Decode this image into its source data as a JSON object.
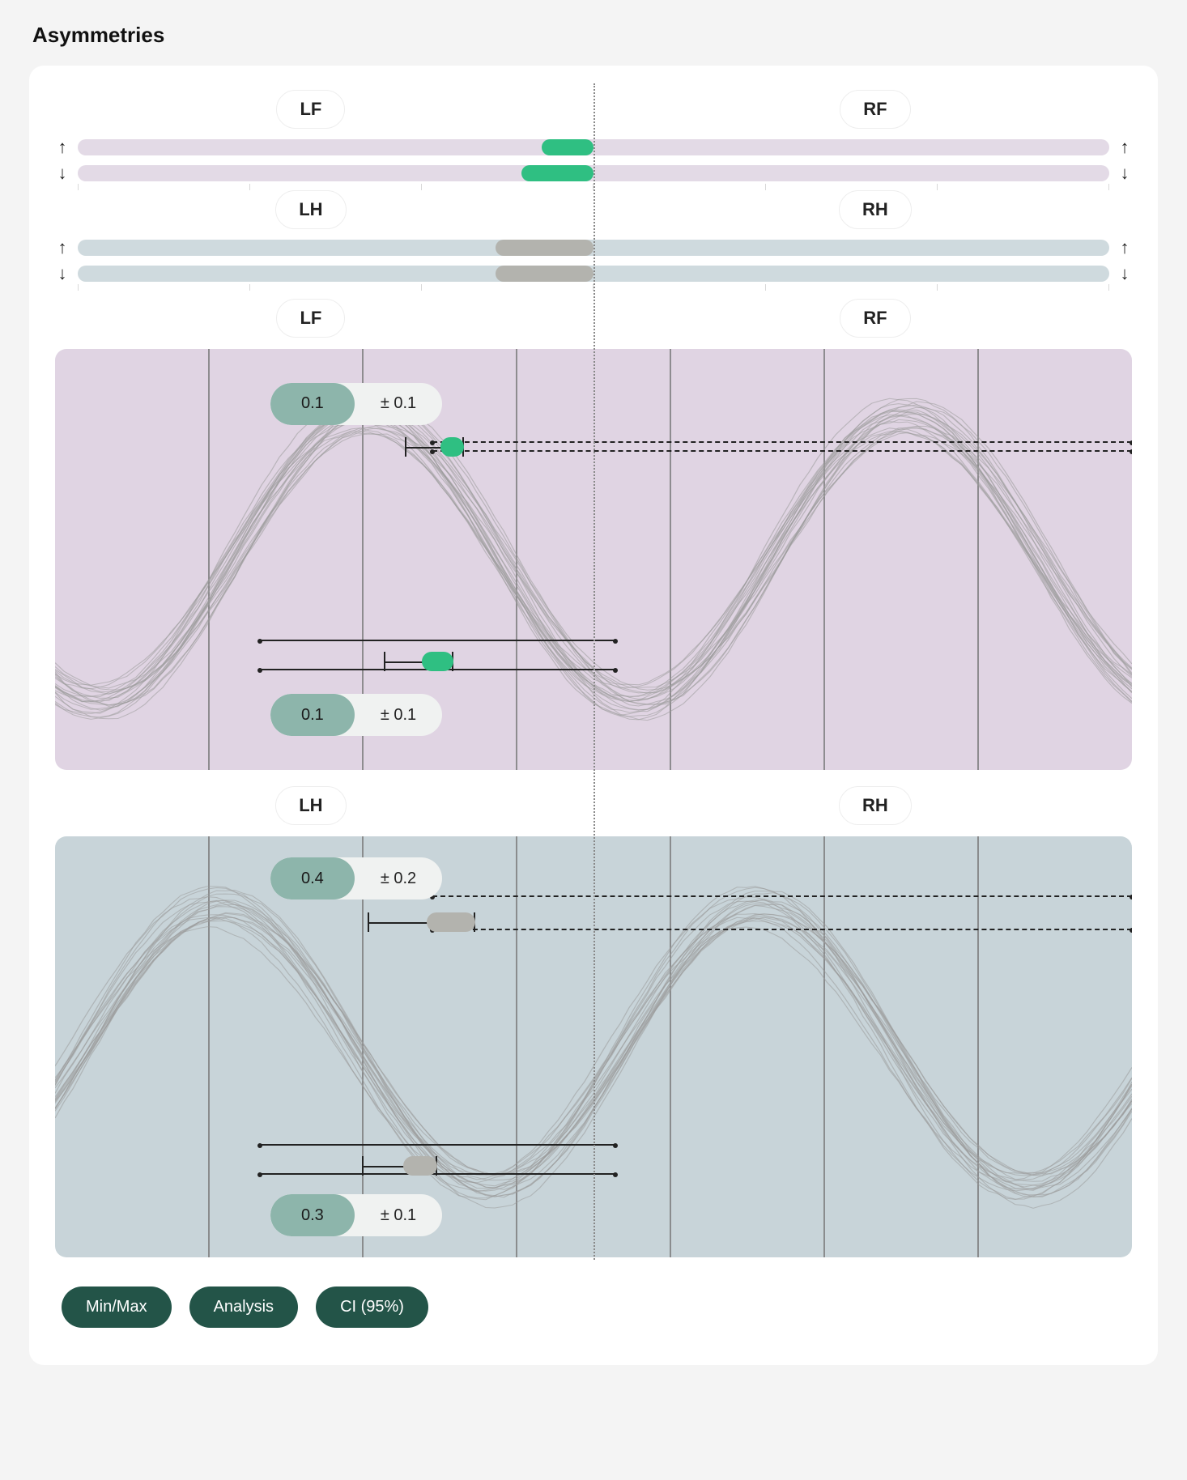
{
  "title": "Asymmetries",
  "palette": {
    "front_track": "#e3dae6",
    "front_accent": "#2fbf82",
    "hind_track": "#cfdade",
    "hind_accent": "#b3b3ae",
    "wave_front_bg": "#e0d4e3",
    "wave_hind_bg": "#c8d4d9",
    "wave_line": "#9a9a9a",
    "grid_line": "#7a7a7a",
    "pill_value_bg": "#8db5ab",
    "pill_bg": "#f0f2f1",
    "button_bg": "#235448"
  },
  "strips": [
    {
      "left_label": "LF",
      "right_label": "RF",
      "track_color": "#e3dae6",
      "accent_color": "#2fbf82",
      "up": {
        "start_pct": 45.0,
        "width_pct": 5.0
      },
      "down": {
        "start_pct": 43.0,
        "width_pct": 7.0
      }
    },
    {
      "left_label": "LH",
      "right_label": "RH",
      "track_color": "#cfdade",
      "accent_color": "#b3b3ae",
      "up": {
        "start_pct": 40.5,
        "width_pct": 9.5
      },
      "down": {
        "start_pct": 40.5,
        "width_pct": 9.5
      }
    }
  ],
  "panels": [
    {
      "left_label": "LF",
      "right_label": "RF",
      "bg_color": "#e0d4e3",
      "accent_color": "#2fbf82",
      "wave": {
        "phase_deg": 60,
        "n_lines": 22,
        "amp_min": 150,
        "amp_max": 195,
        "mid": 260,
        "jitter": 12
      },
      "top_stat": {
        "value": "0.1",
        "delta": "± 0.1",
        "left_pct": 20,
        "top_pct": 8,
        "ci": {
          "left_pct": 32.5,
          "width_pct": 5.5,
          "top_pct": 21,
          "blob_from_pct": 60,
          "blob_to_pct": 100
        },
        "hline_from_pct": 35,
        "hline_to_pct": 100,
        "hline_top_pct": 22,
        "hline2_top_pct": 24
      },
      "bottom_stat": {
        "value": "0.1",
        "delta": "± 0.1",
        "left_pct": 20,
        "top_pct": 82,
        "ci": {
          "left_pct": 30.5,
          "width_pct": 6.5,
          "top_pct": 72,
          "blob_from_pct": 55,
          "blob_to_pct": 100
        },
        "hline_from_pct": 19,
        "hline_to_pct": 52,
        "hline_top_pct": 69,
        "hline2_from_pct": 19,
        "hline2_to_pct": 52,
        "hline2_top_pct": 76
      }
    },
    {
      "left_label": "LH",
      "right_label": "RH",
      "bg_color": "#c8d4d9",
      "accent_color": "#b3b3ae",
      "wave": {
        "phase_deg": 160,
        "n_lines": 20,
        "amp_min": 150,
        "amp_max": 195,
        "mid": 260,
        "jitter": 12
      },
      "top_stat": {
        "value": "0.4",
        "delta": "± 0.2",
        "left_pct": 20,
        "top_pct": 5,
        "ci": {
          "left_pct": 29,
          "width_pct": 10,
          "top_pct": 18,
          "blob_from_pct": 55,
          "blob_to_pct": 100
        },
        "hline_from_pct": 35,
        "hline_to_pct": 100,
        "hline_top_pct": 14,
        "hline2_from_pct": 35,
        "hline2_to_pct": 100,
        "hline2_top_pct": 22
      },
      "bottom_stat": {
        "value": "0.3",
        "delta": "± 0.1",
        "left_pct": 20,
        "top_pct": 85,
        "ci": {
          "left_pct": 28.5,
          "width_pct": 7,
          "top_pct": 76,
          "blob_from_pct": 55,
          "blob_to_pct": 100
        },
        "hline_from_pct": 19,
        "hline_to_pct": 52,
        "hline_top_pct": 73,
        "hline2_from_pct": 19,
        "hline2_to_pct": 52,
        "hline2_top_pct": 80
      }
    }
  ],
  "buttons": [
    {
      "label": "Min/Max"
    },
    {
      "label": "Analysis"
    },
    {
      "label": "CI (95%)"
    }
  ]
}
